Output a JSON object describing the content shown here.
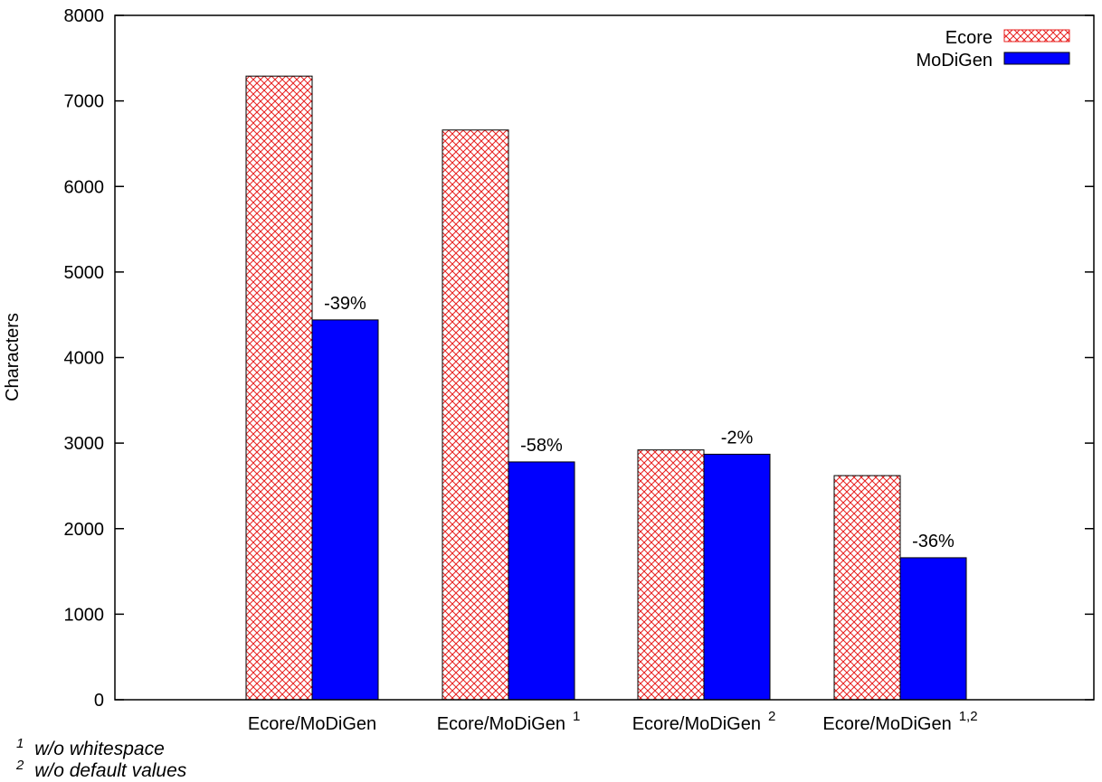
{
  "chart_data": {
    "type": "bar",
    "ylabel": "Characters",
    "ylim": [
      0,
      8000
    ],
    "yticks": [
      0,
      1000,
      2000,
      3000,
      4000,
      5000,
      6000,
      7000,
      8000
    ],
    "categories": [
      {
        "label": "Ecore/MoDiGen",
        "sup": ""
      },
      {
        "label": "Ecore/MoDiGen",
        "sup": "1"
      },
      {
        "label": "Ecore/MoDiGen",
        "sup": "2"
      },
      {
        "label": "Ecore/MoDiGen",
        "sup": "1,2"
      }
    ],
    "series": [
      {
        "name": "Ecore",
        "values": [
          7290,
          6660,
          2920,
          2620
        ],
        "color": "#e8201f",
        "pattern": "crosshatch"
      },
      {
        "name": "MoDiGen",
        "values": [
          4440,
          2780,
          2870,
          1660
        ],
        "color": "#0000ff",
        "pattern": "solid"
      }
    ],
    "bar_labels": [
      "-39%",
      "-58%",
      "-2%",
      "-36%"
    ],
    "legend_position": "top-right",
    "grid": false
  },
  "footnotes": [
    {
      "mark": "1",
      "text": "w/o whitespace"
    },
    {
      "mark": "2",
      "text": "w/o default values"
    }
  ]
}
